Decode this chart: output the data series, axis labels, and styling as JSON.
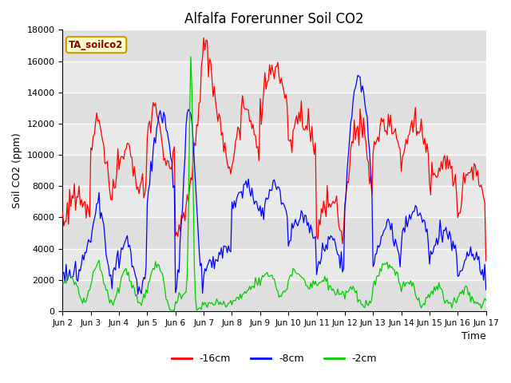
{
  "title": "Alfalfa Forerunner Soil CO2",
  "ylabel": "Soil CO2 (ppm)",
  "xlabel": "Time",
  "annotation": "TA_soilco2",
  "ylim": [
    0,
    18000
  ],
  "xlim": [
    0,
    360
  ],
  "tick_labels": [
    "Jun 2",
    "Jun 3",
    "Jun 4",
    "Jun 5",
    "Jun 6",
    "Jun 7",
    "Jun 8",
    "Jun 9",
    "Jun 10",
    "Jun 11",
    "Jun 12",
    "Jun 13",
    "Jun 14",
    "Jun 15",
    "Jun 16",
    "Jun 17"
  ],
  "tick_positions": [
    0,
    24,
    48,
    72,
    96,
    120,
    144,
    168,
    192,
    216,
    240,
    264,
    288,
    312,
    336,
    360
  ],
  "line_colors": [
    "#ff0000",
    "#0000ff",
    "#00cc00"
  ],
  "line_labels": [
    "-16cm",
    "-8cm",
    "-2cm"
  ],
  "background_color": "#ffffff",
  "plot_bg_color": "#e8e8e8",
  "band_color_light": "#f0f0f0",
  "band_color_dark": "#dcdcdc",
  "title_fontsize": 12,
  "annotation_bg": "#ffffcc",
  "annotation_border": "#cc9900",
  "yticks": [
    0,
    2000,
    4000,
    6000,
    8000,
    10000,
    12000,
    14000,
    16000,
    18000
  ]
}
